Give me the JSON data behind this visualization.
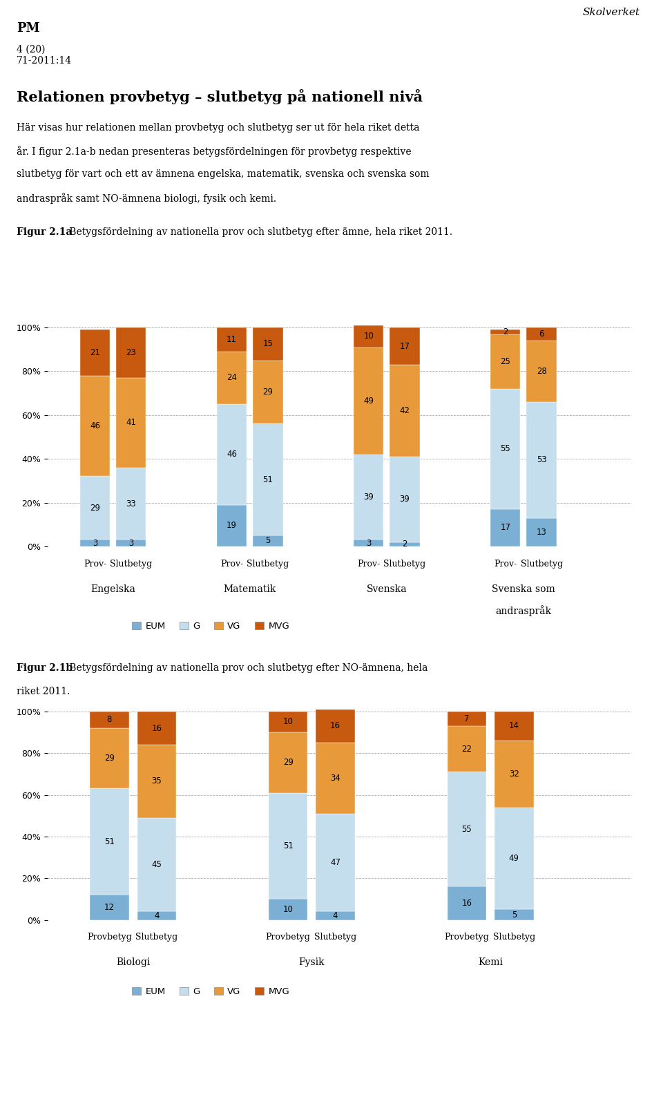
{
  "skolverket_text": "Skolverket",
  "pm_text": "PM",
  "page_number": "4 (20)\n71-2011:14",
  "title_bold": "Relationen provbetyg – slutbetyg på nationell nivå",
  "body_lines": [
    "Här visas hur relationen mellan provbetyg och slutbetyg ser ut för hela riket detta",
    "år. I figur 2.1a-b nedan presenteras betygsfördelningen för provbetyg respektive",
    "slutbetyg för vart och ett av ämnena engelska, matematik, svenska och svenska som",
    "andraspråk samt NO-ämnena biologi, fysik och kemi."
  ],
  "fig1_caption_bold": "Figur 2.1a",
  "fig1_caption_rest": " Betygsfördelning av nationella prov och slutbetyg efter ämne, hela riket 2011.",
  "fig2_caption_bold": "Figur 2.1b",
  "fig2_caption_rest": " Betygsfördelning av nationella prov och slutbetyg efter NO-ämnena, hela riket 2011.",
  "color_EUM": "#7bafd4",
  "color_G": "#c5deed",
  "color_VG": "#e8993a",
  "color_MVG": "#c85a10",
  "color_EUM_dark": "#5a8fb8",
  "grades": [
    "EUM",
    "G",
    "VG",
    "MVG"
  ],
  "fig1_subjects": [
    "Engelska",
    "Matematik",
    "Svenska",
    "Svenska som\nandraspråk"
  ],
  "fig1_bar_labels": [
    "Prov-",
    "Slutbetyg"
  ],
  "fig1_data": {
    "Engelska": {
      "Prov-": {
        "EUM": 3,
        "G": 29,
        "VG": 46,
        "MVG": 21
      },
      "Slutbetyg": {
        "EUM": 3,
        "G": 33,
        "VG": 41,
        "MVG": 23
      }
    },
    "Matematik": {
      "Prov-": {
        "EUM": 19,
        "G": 46,
        "VG": 24,
        "MVG": 11
      },
      "Slutbetyg": {
        "EUM": 5,
        "G": 51,
        "VG": 29,
        "MVG": 15
      }
    },
    "Svenska": {
      "Prov-": {
        "EUM": 3,
        "G": 39,
        "VG": 49,
        "MVG": 10
      },
      "Slutbetyg": {
        "EUM": 2,
        "G": 39,
        "VG": 42,
        "MVG": 17
      }
    },
    "Svenska som\nandraspråk": {
      "Prov-": {
        "EUM": 17,
        "G": 55,
        "VG": 25,
        "MVG": 2
      },
      "Slutbetyg": {
        "EUM": 13,
        "G": 53,
        "VG": 28,
        "MVG": 6
      }
    }
  },
  "fig2_subjects": [
    "Biologi",
    "Fysik",
    "Kemi"
  ],
  "fig2_bar_labels": [
    "Provbetyg",
    "Slutbetyg"
  ],
  "fig2_data": {
    "Biologi": {
      "Provbetyg": {
        "EUM": 12,
        "G": 51,
        "VG": 29,
        "MVG": 8
      },
      "Slutbetyg": {
        "EUM": 4,
        "G": 45,
        "VG": 35,
        "MVG": 16
      }
    },
    "Fysik": {
      "Provbetyg": {
        "EUM": 10,
        "G": 51,
        "VG": 29,
        "MVG": 10
      },
      "Slutbetyg": {
        "EUM": 4,
        "G": 47,
        "VG": 34,
        "MVG": 16
      }
    },
    "Kemi": {
      "Provbetyg": {
        "EUM": 16,
        "G": 55,
        "VG": 22,
        "MVG": 7
      },
      "Slutbetyg": {
        "EUM": 5,
        "G": 49,
        "VG": 32,
        "MVG": 14
      }
    }
  },
  "legend_labels": [
    "EUM",
    "G",
    "VG",
    "MVG"
  ]
}
